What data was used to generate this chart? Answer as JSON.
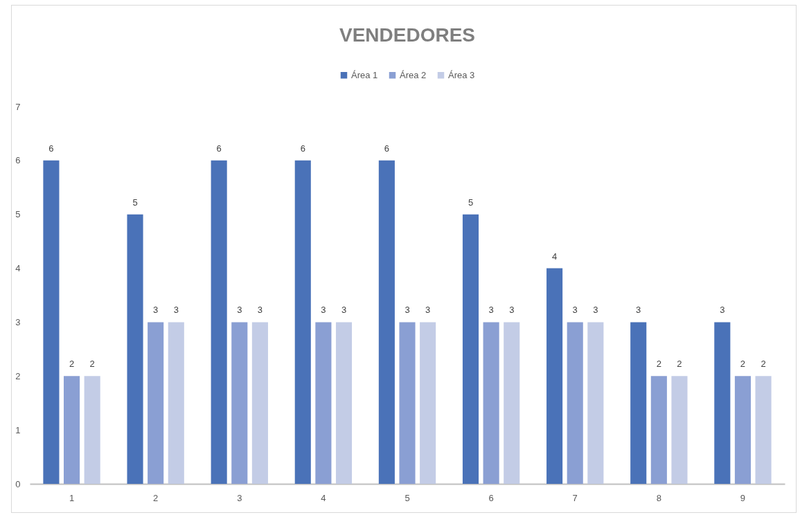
{
  "chart_data": {
    "type": "bar",
    "title": "VENDEDORES",
    "categories": [
      "1",
      "2",
      "3",
      "4",
      "5",
      "6",
      "7",
      "8",
      "9"
    ],
    "series": [
      {
        "name": "Área 1",
        "color": "#4a72b8",
        "values": [
          6,
          5,
          6,
          6,
          6,
          5,
          4,
          3,
          3
        ]
      },
      {
        "name": "Área 2",
        "color": "#8a9fd3",
        "values": [
          2,
          3,
          3,
          3,
          3,
          3,
          3,
          2,
          2
        ]
      },
      {
        "name": "Área 3",
        "color": "#c3cce6",
        "values": [
          2,
          3,
          3,
          3,
          3,
          3,
          3,
          2,
          2
        ]
      }
    ],
    "ylim": [
      0,
      7
    ],
    "yticks": [
      0,
      1,
      2,
      3,
      4,
      5,
      6,
      7
    ],
    "data_labels": true,
    "legend": "top"
  }
}
